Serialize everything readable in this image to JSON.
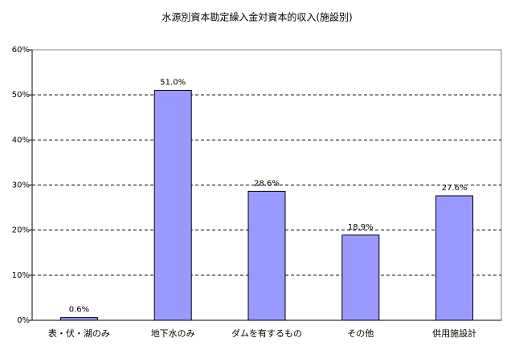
{
  "chart_data": {
    "type": "bar",
    "title": "水源別資本勘定繰入金対資本的収入(施設別)",
    "categories": [
      "表・伏・湖のみ",
      "地下水のみ",
      "ダムを有するもの",
      "その他",
      "供用施設計"
    ],
    "values": [
      0.6,
      51.0,
      28.6,
      18.9,
      27.6
    ],
    "value_labels": [
      "0.6%",
      "51.0%",
      "28.6%",
      "18.9%",
      "27.6%"
    ],
    "color": "#9999ff",
    "ylim": [
      0,
      60
    ],
    "yticks": [
      {
        "value": 0,
        "label": "0%"
      },
      {
        "value": 10,
        "label": "10%"
      },
      {
        "value": 20,
        "label": "20%"
      },
      {
        "value": 30,
        "label": "30%"
      },
      {
        "value": 40,
        "label": "40%"
      },
      {
        "value": 50,
        "label": "50%"
      },
      {
        "value": 60,
        "label": "60%"
      }
    ],
    "grid": true
  }
}
